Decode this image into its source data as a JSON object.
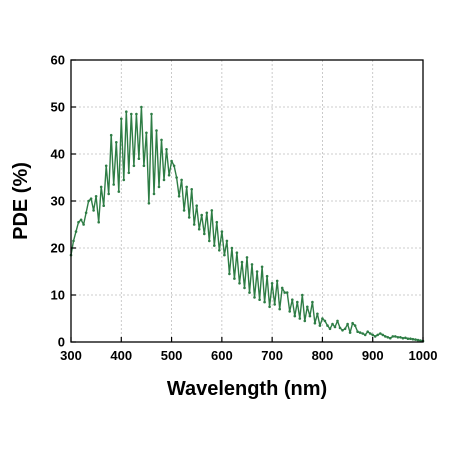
{
  "chart_data": {
    "type": "line",
    "title": "",
    "xlabel": "Wavelength (nm)",
    "ylabel": "PDE (%)",
    "xlim": [
      300,
      1000
    ],
    "ylim": [
      0,
      60
    ],
    "xticks": [
      300,
      400,
      500,
      600,
      700,
      800,
      900,
      1000
    ],
    "yticks": [
      0,
      10,
      20,
      30,
      40,
      50,
      60
    ],
    "grid": true,
    "legend": "none",
    "colors": {
      "line": "#2e7d45",
      "marker": "#2e7d45",
      "grid": "#bdbdbd",
      "axis": "#000000"
    },
    "series": [
      {
        "x": [
          300,
          305,
          310,
          315,
          320,
          325,
          330,
          335,
          340,
          345,
          350,
          355,
          360,
          365,
          370,
          375,
          380,
          385,
          390,
          395,
          400,
          405,
          410,
          415,
          420,
          425,
          430,
          435,
          440,
          445,
          450,
          455,
          460,
          465,
          470,
          475,
          480,
          485,
          490,
          495,
          500,
          505,
          510,
          515,
          520,
          525,
          530,
          535,
          540,
          545,
          550,
          555,
          560,
          565,
          570,
          575,
          580,
          585,
          590,
          595,
          600,
          605,
          610,
          615,
          620,
          625,
          630,
          635,
          640,
          645,
          650,
          655,
          660,
          665,
          670,
          675,
          680,
          685,
          690,
          695,
          700,
          705,
          710,
          715,
          720,
          725,
          730,
          735,
          740,
          745,
          750,
          755,
          760,
          765,
          770,
          775,
          780,
          785,
          790,
          795,
          800,
          805,
          810,
          815,
          820,
          825,
          830,
          835,
          840,
          845,
          850,
          855,
          860,
          865,
          870,
          875,
          880,
          885,
          890,
          895,
          900,
          905,
          910,
          915,
          920,
          925,
          930,
          935,
          940,
          945,
          950,
          955,
          960,
          965,
          970,
          975,
          980,
          985,
          990,
          995,
          1000
        ],
        "y": [
          18.5,
          21.5,
          23.5,
          25.5,
          26.0,
          25.0,
          27.5,
          30.0,
          30.5,
          28.0,
          31.0,
          25.5,
          33.0,
          29.0,
          37.5,
          31.5,
          44.0,
          33.5,
          42.5,
          32.0,
          47.5,
          34.5,
          49.0,
          36.0,
          48.5,
          37.5,
          48.5,
          39.0,
          50.0,
          37.5,
          44.5,
          29.5,
          48.5,
          31.5,
          45.0,
          33.0,
          43.0,
          34.5,
          41.0,
          35.5,
          38.5,
          37.5,
          35.0,
          31.0,
          34.5,
          28.0,
          33.0,
          26.5,
          32.5,
          25.0,
          29.0,
          24.0,
          27.0,
          23.0,
          27.5,
          21.5,
          28.0,
          20.5,
          25.5,
          19.5,
          23.5,
          18.5,
          21.5,
          14.5,
          20.0,
          13.5,
          19.0,
          12.5,
          17.0,
          11.5,
          18.0,
          10.5,
          16.5,
          9.5,
          15.0,
          9.0,
          16.0,
          8.5,
          14.0,
          7.5,
          12.5,
          8.0,
          13.0,
          7.0,
          11.5,
          10.5,
          10.5,
          6.5,
          9.0,
          5.5,
          8.5,
          5.0,
          10.0,
          4.5,
          7.5,
          5.5,
          8.5,
          4.0,
          6.0,
          3.5,
          5.0,
          4.5,
          3.5,
          2.8,
          3.8,
          3.2,
          4.5,
          3.0,
          2.5,
          2.8,
          3.8,
          2.0,
          4.0,
          3.5,
          2.2,
          2.0,
          1.8,
          1.5,
          2.2,
          1.8,
          1.5,
          1.2,
          1.5,
          1.8,
          1.5,
          1.2,
          1.0,
          0.8,
          1.2,
          1.2,
          1.0,
          1.0,
          0.8,
          0.9,
          0.7,
          0.7,
          0.6,
          0.5,
          0.4,
          0.3,
          0.2
        ]
      }
    ]
  }
}
